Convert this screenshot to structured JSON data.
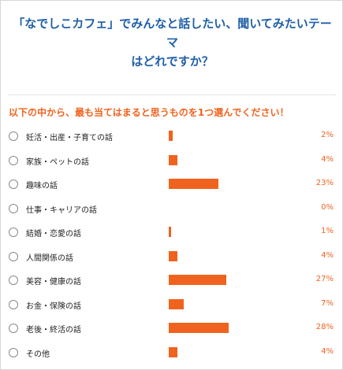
{
  "survey": {
    "question_line1": "「なでしこカフェ」でみんなと話したい、聞いてみたいテーマ",
    "question_line2": "はどれですか？",
    "instruction": "以下の中から、最も当てはまると思うものを1つ選んでください！",
    "options": [
      {
        "label": "妊活・出産・子育ての話",
        "percent_text": "2%",
        "value": 2
      },
      {
        "label": "家族・ペットの話",
        "percent_text": "4%",
        "value": 4
      },
      {
        "label": "趣味の話",
        "percent_text": "23%",
        "value": 23
      },
      {
        "label": "仕事・キャリアの話",
        "percent_text": "0%",
        "value": 0
      },
      {
        "label": "結婚・恋愛の話",
        "percent_text": "1%",
        "value": 1
      },
      {
        "label": "人間関係の話",
        "percent_text": "4%",
        "value": 4
      },
      {
        "label": "美容・健康の話",
        "percent_text": "27%",
        "value": 27
      },
      {
        "label": "お金・保険の話",
        "percent_text": "7%",
        "value": 7
      },
      {
        "label": "老後・終活の話",
        "percent_text": "28%",
        "value": 28
      },
      {
        "label": "その他",
        "percent_text": "4%",
        "value": 4
      }
    ]
  },
  "colors": {
    "question": "#1f5fa8",
    "accent": "#f0631e"
  }
}
